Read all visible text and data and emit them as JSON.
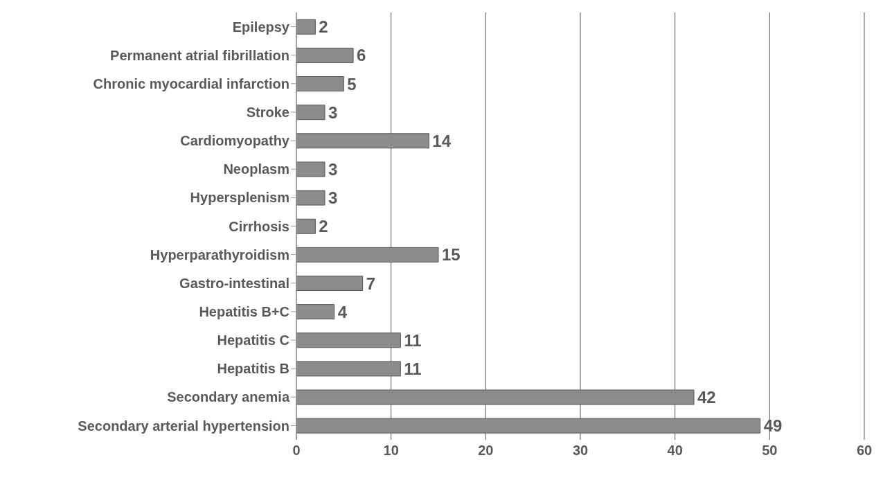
{
  "chart_data": {
    "type": "bar",
    "orientation": "horizontal",
    "categories": [
      "Epilepsy",
      "Permanent atrial fibrillation",
      "Chronic myocardial infarction",
      "Stroke",
      "Cardiomyopathy",
      "Neoplasm",
      "Hypersplenism",
      "Cirrhosis",
      "Hyperparathyroidism",
      "Gastro-intestinal",
      "Hepatitis B+C",
      "Hepatitis C",
      "Hepatitis B",
      "Secondary anemia",
      "Secondary arterial hypertension"
    ],
    "values": [
      2,
      6,
      5,
      3,
      14,
      3,
      3,
      2,
      15,
      7,
      4,
      11,
      11,
      42,
      49
    ],
    "color": "#8c8c8c",
    "xlim": [
      0,
      60
    ],
    "xticks": [
      0,
      10,
      20,
      30,
      40,
      50,
      60
    ],
    "grid": "x",
    "data_labels": true
  }
}
